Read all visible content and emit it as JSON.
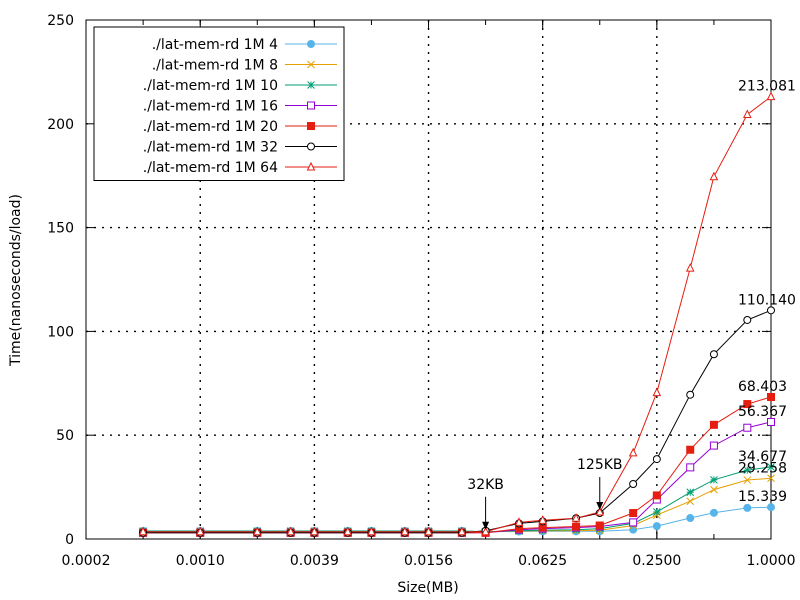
{
  "chart_data": {
    "type": "line",
    "xlabel": "Size(MB)",
    "ylabel": "Time(nanoseconds/load)",
    "xscale": "log2",
    "xlim": [
      0.000244,
      1.0
    ],
    "ylim": [
      0,
      250
    ],
    "x_ticks": [
      {
        "value": 0.000244,
        "label": "0.0002"
      },
      {
        "value": 0.000977,
        "label": "0.0010"
      },
      {
        "value": 0.003906,
        "label": "0.0039"
      },
      {
        "value": 0.015625,
        "label": "0.0156"
      },
      {
        "value": 0.0625,
        "label": "0.0625"
      },
      {
        "value": 0.25,
        "label": "0.2500"
      },
      {
        "value": 1.0,
        "label": "1.0000"
      }
    ],
    "y_ticks": [
      0,
      50,
      100,
      150,
      200,
      250
    ],
    "grid": true,
    "legend_position": "top-left",
    "x": [
      0.000488,
      0.000977,
      0.001953,
      0.00293,
      0.003906,
      0.005859,
      0.007813,
      0.011719,
      0.015625,
      0.023438,
      0.03125,
      0.046875,
      0.0625,
      0.09375,
      0.125,
      0.1875,
      0.25,
      0.375,
      0.5,
      0.75,
      1.0
    ],
    "series": [
      {
        "name": "./lat-mem-rd 1M 4",
        "color": "#56b4e9",
        "marker": "circle-filled",
        "values": [
          3.9,
          3.9,
          3.9,
          3.9,
          3.9,
          3.9,
          3.9,
          3.9,
          3.9,
          3.9,
          3.5,
          3.6,
          3.7,
          3.7,
          3.7,
          4.5,
          6.2,
          10.1,
          12.6,
          15.0,
          15.339
        ]
      },
      {
        "name": "./lat-mem-rd 1M 8",
        "color": "#e69f00",
        "marker": "x",
        "values": [
          3.7,
          3.7,
          3.7,
          3.7,
          3.7,
          3.7,
          3.7,
          3.7,
          3.7,
          3.7,
          3.5,
          3.8,
          4.0,
          4.0,
          4.2,
          6.5,
          11.5,
          18.2,
          23.8,
          28.4,
          29.258
        ]
      },
      {
        "name": "./lat-mem-rd 1M 10",
        "color": "#009e73",
        "marker": "star",
        "values": [
          3.8,
          3.8,
          3.8,
          3.8,
          3.8,
          3.8,
          3.8,
          3.8,
          3.8,
          3.8,
          3.5,
          4.0,
          4.3,
          4.5,
          5.0,
          7.5,
          13.0,
          22.5,
          28.5,
          33.2,
          34.677
        ]
      },
      {
        "name": "./lat-mem-rd 1M 16",
        "color": "#9400d3",
        "marker": "square-open",
        "values": [
          3.0,
          3.0,
          3.0,
          3.0,
          3.0,
          3.0,
          3.0,
          3.0,
          3.0,
          3.0,
          3.0,
          4.5,
          5.0,
          5.5,
          6.0,
          8.0,
          19.0,
          34.5,
          45.0,
          53.6,
          56.367
        ]
      },
      {
        "name": "./lat-mem-rd 1M 20",
        "color": "#e51e10",
        "marker": "square-filled",
        "values": [
          3.0,
          3.0,
          3.0,
          3.0,
          3.0,
          3.0,
          3.0,
          3.0,
          3.0,
          3.0,
          3.0,
          5.0,
          5.5,
          6.0,
          6.5,
          12.5,
          21.0,
          43.0,
          55.0,
          65.0,
          68.403
        ]
      },
      {
        "name": "./lat-mem-rd 1M 32",
        "color": "#000000",
        "marker": "circle-open",
        "values": [
          3.0,
          3.0,
          3.0,
          3.0,
          3.0,
          3.0,
          3.0,
          3.0,
          3.0,
          3.0,
          4.0,
          7.5,
          8.5,
          10.0,
          12.5,
          26.5,
          38.5,
          69.5,
          89.0,
          105.5,
          110.14
        ]
      },
      {
        "name": "./lat-mem-rd 1M 64",
        "color": "#e51e10",
        "marker": "triangle-open",
        "values": [
          3.5,
          3.5,
          3.5,
          3.5,
          3.5,
          3.5,
          3.5,
          3.5,
          3.5,
          3.5,
          3.5,
          8.0,
          9.0,
          10.0,
          13.0,
          41.5,
          70.5,
          130.5,
          174.5,
          204.5,
          213.081
        ]
      }
    ],
    "end_labels": [
      {
        "text": "213.081",
        "x": 1.0,
        "y": 213.081
      },
      {
        "text": "110.140",
        "x": 1.0,
        "y": 110.14
      },
      {
        "text": "68.403",
        "x": 1.0,
        "y": 68.403
      },
      {
        "text": "56.367",
        "x": 1.0,
        "y": 56.367
      },
      {
        "text": "34.677",
        "x": 1.0,
        "y": 34.677
      },
      {
        "text": "29.258",
        "x": 1.0,
        "y": 29.258
      },
      {
        "text": "15.339",
        "x": 1.0,
        "y": 15.339
      }
    ],
    "annotations": [
      {
        "text": "32KB",
        "x": 0.03125,
        "y": 3.0
      },
      {
        "text": "125KB",
        "x": 0.125,
        "y": 12.5
      }
    ]
  }
}
